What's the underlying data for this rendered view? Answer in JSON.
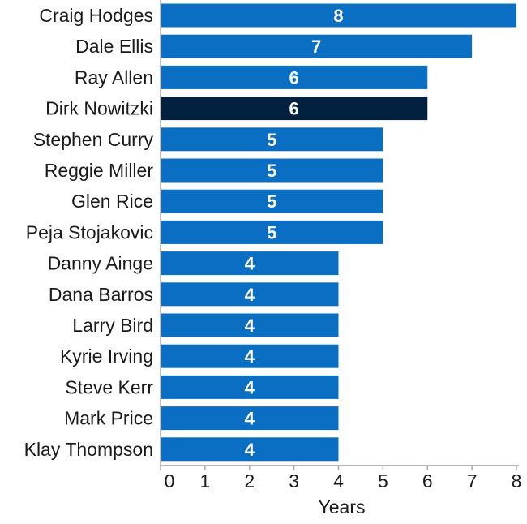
{
  "chart_data": {
    "type": "bar",
    "orientation": "horizontal",
    "categories": [
      "Craig Hodges",
      "Dale Ellis",
      "Ray Allen",
      "Dirk Nowitzki",
      "Stephen Curry",
      "Reggie Miller",
      "Glen Rice",
      "Peja Stojakovic",
      "Danny Ainge",
      "Dana Barros",
      "Larry Bird",
      "Kyrie Irving",
      "Steve Kerr",
      "Mark Price",
      "Klay Thompson"
    ],
    "values": [
      8,
      7,
      6,
      6,
      5,
      5,
      5,
      5,
      4,
      4,
      4,
      4,
      4,
      4,
      4
    ],
    "highlight": "Dirk Nowitzki",
    "xlabel": "Years",
    "ylabel": "",
    "title": "",
    "xlim": [
      0,
      8
    ],
    "xticks": [
      0,
      1,
      2,
      3,
      4,
      5,
      6,
      7,
      8
    ],
    "grid": false,
    "data_labels": true,
    "colors": {
      "bar": "#0a6fc2",
      "highlight": "#01213f",
      "label": "#ffffff",
      "axis": "#aaaaaa"
    }
  }
}
